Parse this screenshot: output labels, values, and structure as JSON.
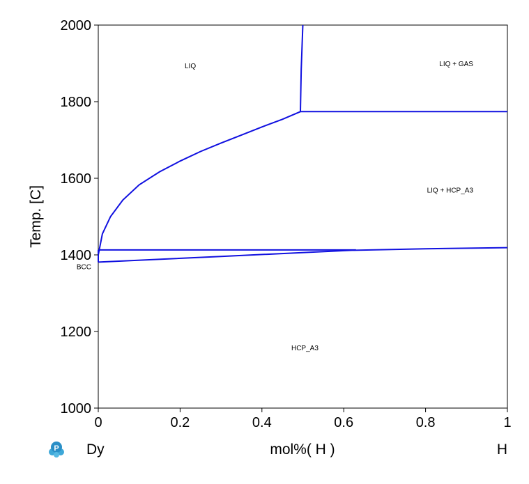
{
  "chart_data": {
    "type": "line",
    "title": "",
    "xlabel": "mol%( H )",
    "ylabel": "Temp.  [C]",
    "xlim": [
      0,
      1
    ],
    "ylim": [
      1000,
      2000
    ],
    "xticks": [
      0,
      0.2,
      0.4,
      0.6,
      0.8,
      1
    ],
    "xtick_labels": [
      "0",
      "0.2",
      "0.4",
      "0.6",
      "0.8",
      "1"
    ],
    "yticks": [
      1000,
      1200,
      1400,
      1600,
      1800,
      2000
    ],
    "ytick_labels": [
      "1000",
      "1200",
      "1400",
      "1600",
      "1800",
      "2000"
    ],
    "left_element": "Dy",
    "right_element": "H",
    "line_color": "#1010e0",
    "grid": false,
    "series": [
      {
        "x": [
          0.5,
          0.496,
          0.494
        ],
        "y": [
          2000,
          1885,
          1774
        ]
      },
      {
        "x": [
          0.494,
          1.0
        ],
        "y": [
          1774,
          1774
        ]
      },
      {
        "x": [
          0.0,
          0.01,
          0.03,
          0.06,
          0.1,
          0.15,
          0.2,
          0.25,
          0.3,
          0.35,
          0.4,
          0.45,
          0.494
        ],
        "y": [
          1400,
          1455,
          1500,
          1543,
          1583,
          1617,
          1645,
          1670,
          1692,
          1713,
          1734,
          1754,
          1774
        ]
      },
      {
        "x": [
          0.0,
          0.63
        ],
        "y": [
          1413,
          1413
        ]
      },
      {
        "x": [
          0.0,
          0.3,
          0.62,
          0.8,
          1.0
        ],
        "y": [
          1381,
          1396,
          1412,
          1416,
          1419
        ]
      },
      {
        "x": [
          0.0,
          0.0
        ],
        "y": [
          1381,
          1413
        ]
      }
    ],
    "annotations": [
      {
        "text": "LIQ",
        "x": 0.225,
        "y": 1895
      },
      {
        "text": "LIQ + GAS",
        "x": 0.875,
        "y": 1900
      },
      {
        "text": "LIQ + HCP_A3",
        "x": 0.86,
        "y": 1570
      },
      {
        "text": "BCC",
        "x": -0.035,
        "y": 1370
      },
      {
        "text": "HCP_A3",
        "x": 0.505,
        "y": 1158
      }
    ]
  }
}
